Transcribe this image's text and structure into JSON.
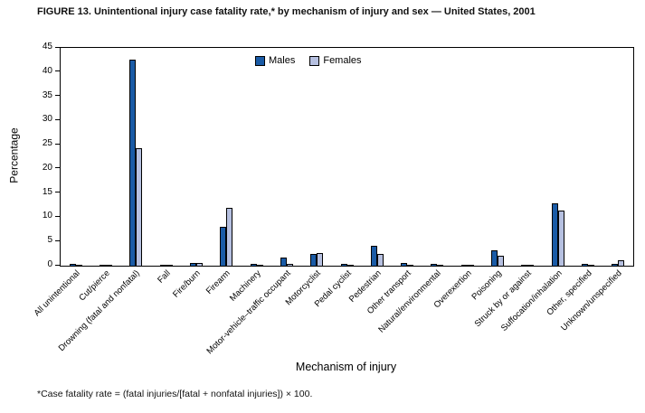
{
  "figure": {
    "title": "FIGURE 13. Unintentional injury case fatality rate,* by mechanism of injury and sex — United States, 2001",
    "footnote": "*Case fatality rate = (fatal injuries/[fatal + nonfatal injuries]) × 100.",
    "xlabel": "Mechanism of injury",
    "ylabel": "Percentage"
  },
  "chart_data": {
    "type": "bar",
    "title": "FIGURE 13. Unintentional injury case fatality rate, by mechanism of injury and sex — United States, 2001",
    "xlabel": "Mechanism of injury",
    "ylabel": "Percentage",
    "ylim": [
      0,
      45
    ],
    "ytick_interval": 5,
    "grid": false,
    "legend_position": "top-center-inside",
    "categories": [
      "All unintentional",
      "Cut/pierce",
      "Drowning (fatal and nonfatal)",
      "Fall",
      "Fire/burn",
      "Firearm",
      "Machinery",
      "Motor-vehicle–traffic occupant",
      "Motorcyclist",
      "Pedal cyclist",
      "Pedestrian",
      "Other transport",
      "Natural/environmental",
      "Overexertion",
      "Poisoning",
      "Struck by or against",
      "Suffocation/inhalation",
      "Other, specified",
      "Unknown/unspecified"
    ],
    "series": [
      {
        "name": "Males",
        "color": "#1a5ba6",
        "values": [
          0.4,
          0.1,
          42.6,
          0.2,
          0.6,
          8.0,
          0.3,
          1.6,
          2.4,
          0.3,
          4.2,
          0.5,
          0.3,
          0.05,
          3.1,
          0.1,
          12.9,
          0.3,
          0.3
        ]
      },
      {
        "name": "Females",
        "color": "#b6c0e0",
        "values": [
          0.2,
          0.1,
          24.2,
          0.1,
          0.5,
          12.0,
          0.1,
          0.3,
          2.6,
          0.2,
          2.4,
          0.2,
          0.2,
          0.05,
          2.0,
          0.1,
          11.4,
          0.2,
          1.2
        ]
      }
    ]
  }
}
